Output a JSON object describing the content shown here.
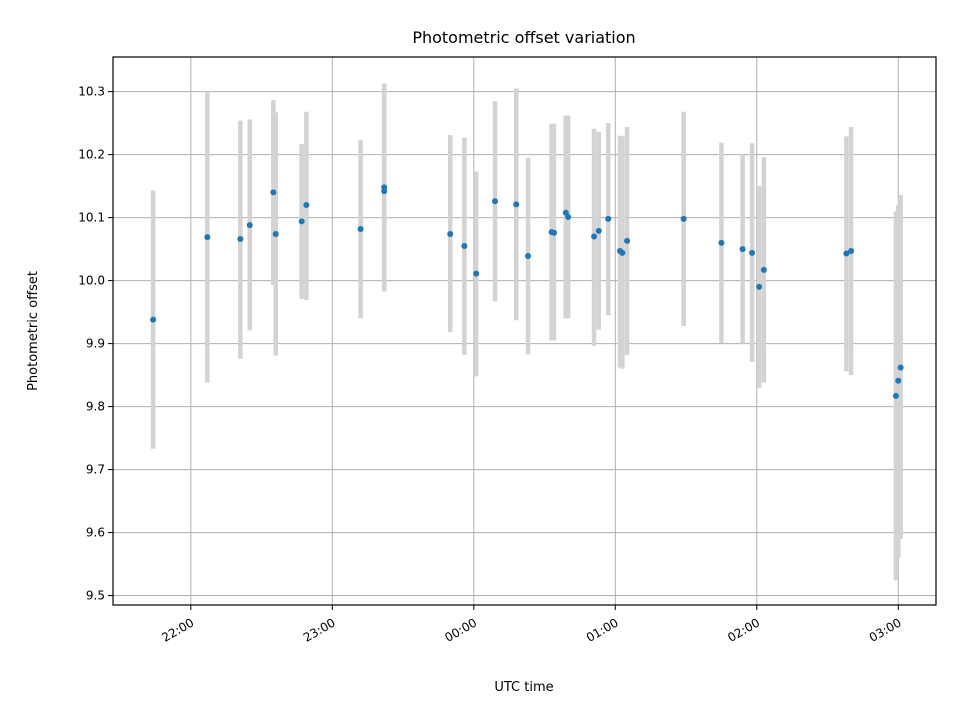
{
  "chart_data": {
    "type": "scatter",
    "title": "Photometric offset variation",
    "xlabel": "UTC time",
    "ylabel": "Photometric offset",
    "x_ticks": [
      "22:00",
      "23:00",
      "00:00",
      "01:00",
      "02:00",
      "03:00"
    ],
    "y_ticks": [
      "9.5",
      "9.6",
      "9.7",
      "9.8",
      "9.9",
      "10.0",
      "10.1",
      "10.2",
      "10.3"
    ],
    "xlim": [
      "21:27",
      "03:16"
    ],
    "ylim": [
      9.485,
      10.355
    ],
    "grid": true,
    "colors": {
      "point": "#1f77b4",
      "errorbar": "#d3d3d3",
      "grid": "#b0b0b0"
    },
    "series": [
      {
        "points": [
          {
            "x": "21:44",
            "y": 9.938,
            "lo": 9.733,
            "hi": 10.143
          },
          {
            "x": "22:07",
            "y": 10.069,
            "lo": 9.838,
            "hi": 10.3
          },
          {
            "x": "22:21",
            "y": 10.066,
            "lo": 9.876,
            "hi": 10.254
          },
          {
            "x": "22:25",
            "y": 10.088,
            "lo": 9.921,
            "hi": 10.256
          },
          {
            "x": "22:35",
            "y": 10.14,
            "lo": 9.993,
            "hi": 10.287
          },
          {
            "x": "22:36",
            "y": 10.074,
            "lo": 9.881,
            "hi": 10.267
          },
          {
            "x": "22:47",
            "y": 10.094,
            "lo": 9.971,
            "hi": 10.217
          },
          {
            "x": "22:49",
            "y": 10.12,
            "lo": 9.969,
            "hi": 10.268
          },
          {
            "x": "23:12",
            "y": 10.082,
            "lo": 9.94,
            "hi": 10.223
          },
          {
            "x": "23:22",
            "y": 10.142,
            "lo": 9.983,
            "hi": 10.313
          },
          {
            "x": "23:22",
            "y": 10.148,
            "lo": 9.983,
            "hi": 10.313
          },
          {
            "x": "23:50",
            "y": 10.074,
            "lo": 9.918,
            "hi": 10.231
          },
          {
            "x": "23:56",
            "y": 10.055,
            "lo": 9.882,
            "hi": 10.227
          },
          {
            "x": "00:01",
            "y": 10.011,
            "lo": 9.848,
            "hi": 10.173
          },
          {
            "x": "00:09",
            "y": 10.126,
            "lo": 9.967,
            "hi": 10.285
          },
          {
            "x": "00:18",
            "y": 10.121,
            "lo": 9.937,
            "hi": 10.305
          },
          {
            "x": "00:23",
            "y": 10.039,
            "lo": 9.883,
            "hi": 10.195
          },
          {
            "x": "00:33",
            "y": 10.077,
            "lo": 9.905,
            "hi": 10.249
          },
          {
            "x": "00:34",
            "y": 10.076,
            "lo": 9.905,
            "hi": 10.249
          },
          {
            "x": "00:39",
            "y": 10.108,
            "lo": 9.94,
            "hi": 10.262
          },
          {
            "x": "00:40",
            "y": 10.101,
            "lo": 9.94,
            "hi": 10.262
          },
          {
            "x": "00:51",
            "y": 10.07,
            "lo": 9.896,
            "hi": 10.241
          },
          {
            "x": "00:53",
            "y": 10.079,
            "lo": 9.922,
            "hi": 10.236
          },
          {
            "x": "00:57",
            "y": 10.098,
            "lo": 9.945,
            "hi": 10.25
          },
          {
            "x": "01:02",
            "y": 10.047,
            "lo": 9.862,
            "hi": 10.23
          },
          {
            "x": "01:03",
            "y": 10.044,
            "lo": 9.86,
            "hi": 10.229
          },
          {
            "x": "01:05",
            "y": 10.063,
            "lo": 9.882,
            "hi": 10.244
          },
          {
            "x": "01:29",
            "y": 10.098,
            "lo": 9.928,
            "hi": 10.268
          },
          {
            "x": "01:45",
            "y": 10.06,
            "lo": 9.901,
            "hi": 10.219
          },
          {
            "x": "01:54",
            "y": 10.05,
            "lo": 9.9,
            "hi": 10.2
          },
          {
            "x": "01:58",
            "y": 10.044,
            "lo": 9.871,
            "hi": 10.218
          },
          {
            "x": "02:01",
            "y": 9.99,
            "lo": 9.83,
            "hi": 10.15
          },
          {
            "x": "02:03",
            "y": 10.017,
            "lo": 9.838,
            "hi": 10.196
          },
          {
            "x": "02:38",
            "y": 10.043,
            "lo": 9.856,
            "hi": 10.229
          },
          {
            "x": "02:40",
            "y": 10.047,
            "lo": 9.85,
            "hi": 10.244
          },
          {
            "x": "02:59",
            "y": 9.817,
            "lo": 9.524,
            "hi": 10.11
          },
          {
            "x": "03:00",
            "y": 9.841,
            "lo": 9.56,
            "hi": 10.12
          },
          {
            "x": "03:01",
            "y": 9.862,
            "lo": 9.59,
            "hi": 10.136
          }
        ]
      }
    ]
  }
}
